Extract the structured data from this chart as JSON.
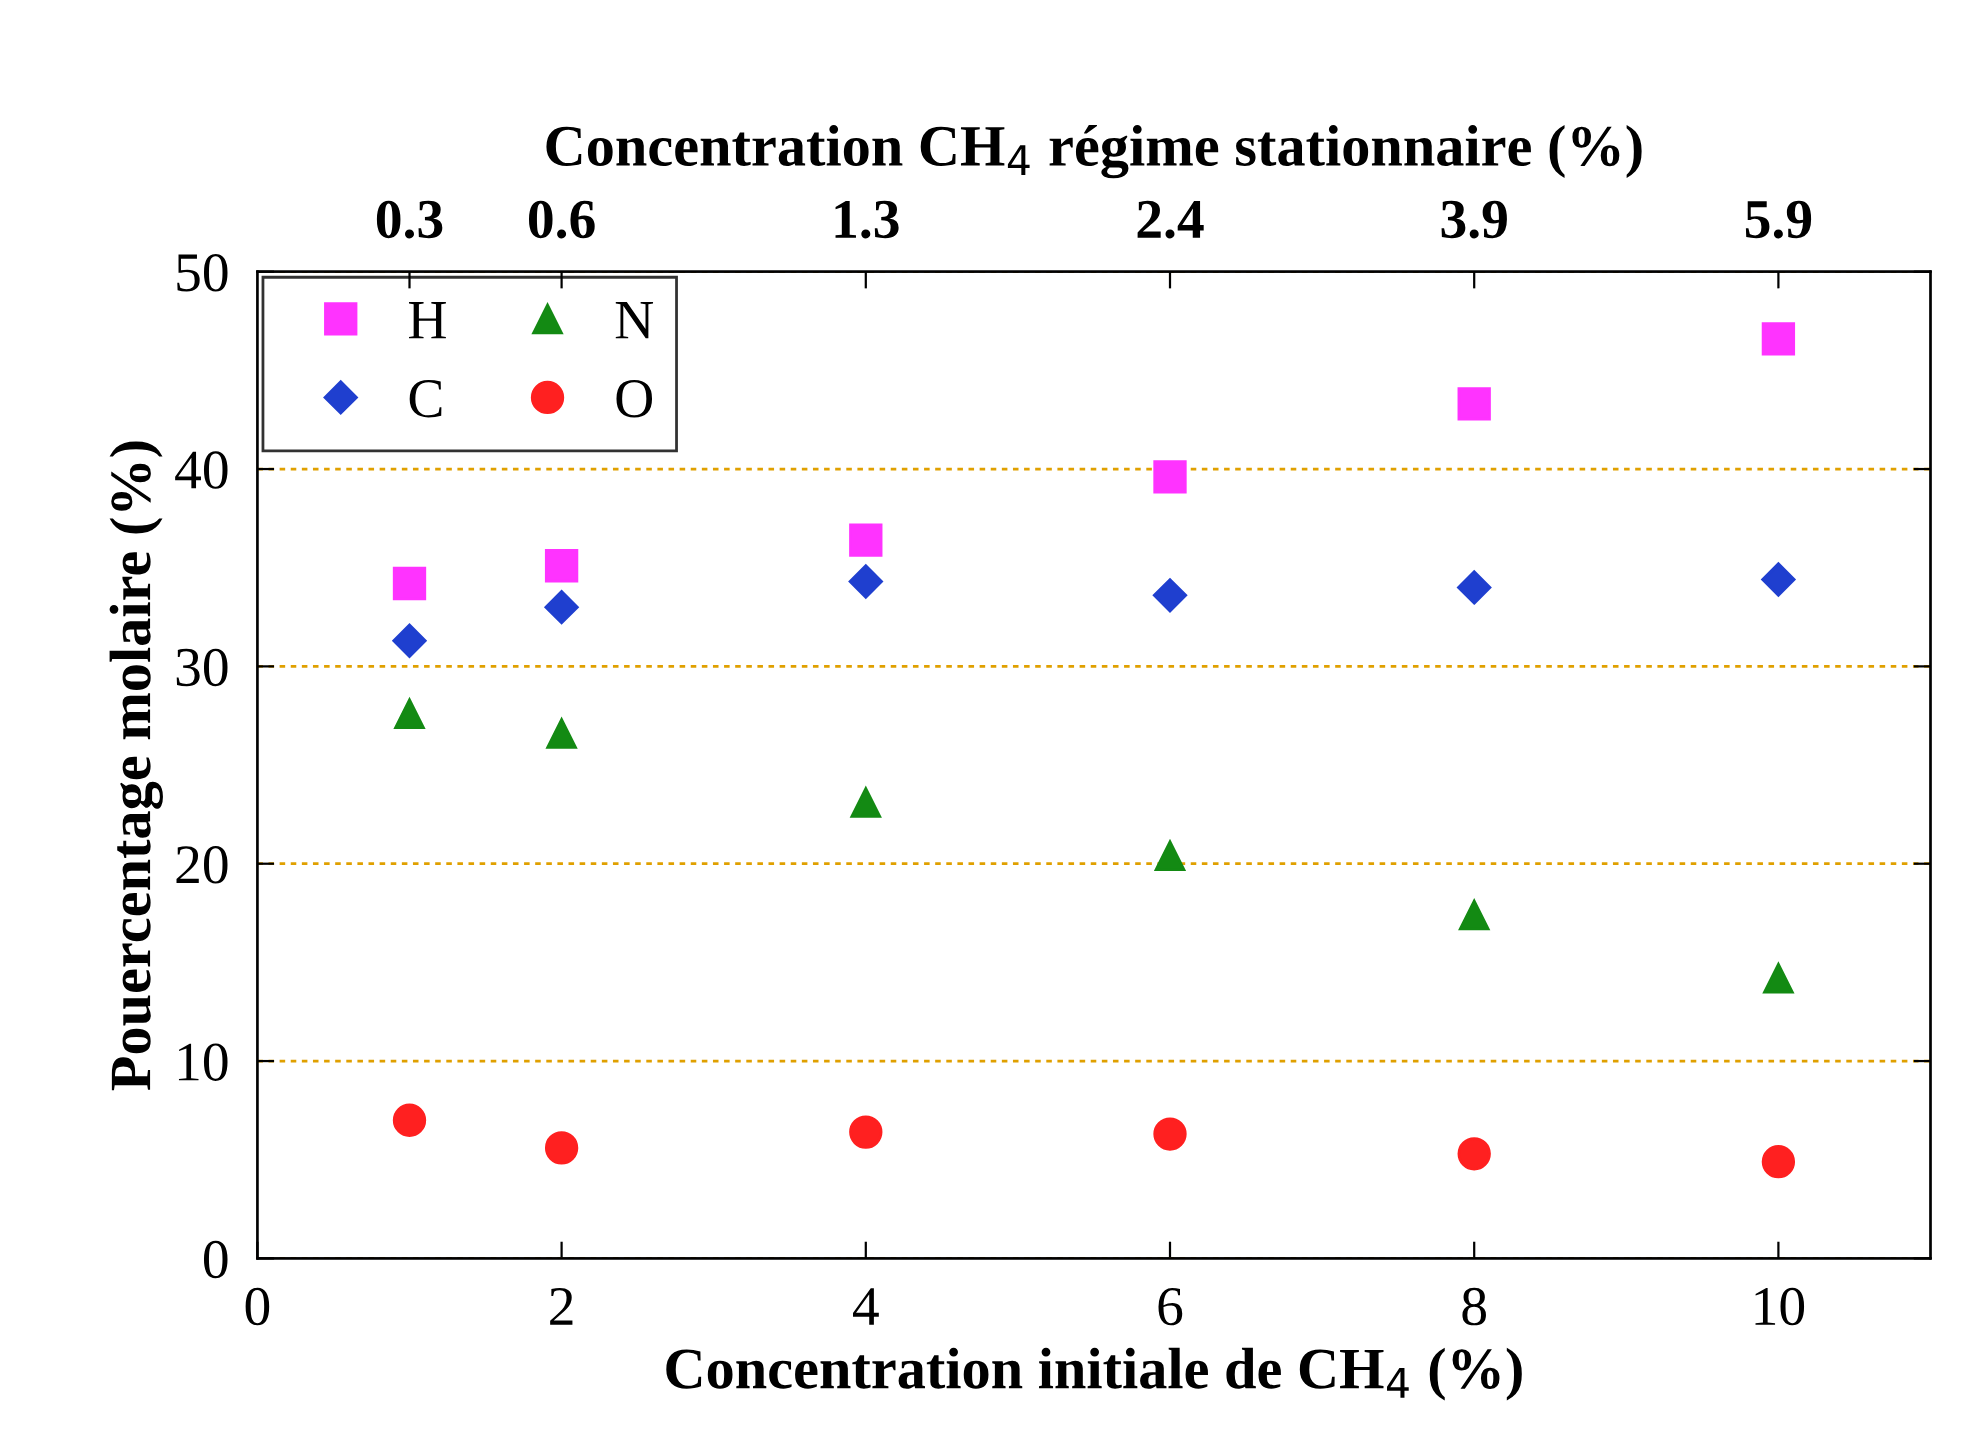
{
  "chart_data": {
    "type": "scatter",
    "xlabel": "Concentration initiale de CH$_{4}$ (%)",
    "ylabel": "Pouercentage molaire (%)",
    "x2label": "Concentration CH$_{4}$ régime stationnaire (%)",
    "x": [
      1,
      2,
      4,
      6,
      8,
      10
    ],
    "series": [
      {
        "name": "H",
        "color": "#ff33ff",
        "marker": "square",
        "values": [
          34.2,
          35.1,
          36.4,
          39.6,
          43.3,
          46.6
        ]
      },
      {
        "name": "C",
        "color": "#1f3fcf",
        "marker": "diamond",
        "values": [
          31.3,
          33.0,
          34.3,
          33.6,
          34.0,
          34.4
        ]
      },
      {
        "name": "N",
        "color": "#138a13",
        "marker": "triangle",
        "values": [
          27.6,
          26.6,
          23.1,
          20.4,
          17.4,
          14.2
        ]
      },
      {
        "name": "O",
        "color": "#ff2020",
        "marker": "circle",
        "values": [
          7.0,
          5.6,
          6.4,
          6.3,
          5.3,
          4.9
        ]
      }
    ],
    "xlim": [
      0,
      11
    ],
    "xticks": [
      0,
      2,
      4,
      6,
      8,
      10
    ],
    "ylim": [
      0,
      50
    ],
    "yticks": [
      0,
      10,
      20,
      30,
      40,
      50
    ],
    "annotations": [
      {
        "text": "0.3",
        "x": 1
      },
      {
        "text": "0.6",
        "x": 2
      },
      {
        "text": "1.3",
        "x": 4
      },
      {
        "text": "2.4",
        "x": 6
      },
      {
        "text": "3.9",
        "x": 8
      },
      {
        "text": "5.9",
        "x": 10
      }
    ],
    "grid": "y",
    "legend": "top left"
  }
}
